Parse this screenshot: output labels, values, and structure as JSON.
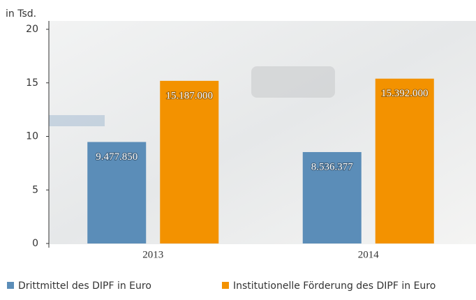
{
  "chart_data": {
    "type": "bar",
    "y_label": "in Tsd.",
    "categories": [
      "2013",
      "2014"
    ],
    "series": [
      {
        "name": "Drittmittel des DIPF in Euro",
        "color": "#5b8db8",
        "values": [
          9.47785,
          8.536377
        ],
        "value_labels": [
          "9.477.850",
          "8.536.377"
        ]
      },
      {
        "name": "Institutionelle Förderung des DIPF in Euro",
        "color": "#f39200",
        "values": [
          15.187,
          15.392
        ],
        "value_labels": [
          "15.187.000",
          "15.392.000"
        ]
      }
    ],
    "ylim": [
      0,
      20
    ],
    "yticks": [
      0,
      5,
      10,
      15,
      20
    ],
    "grid": false
  }
}
